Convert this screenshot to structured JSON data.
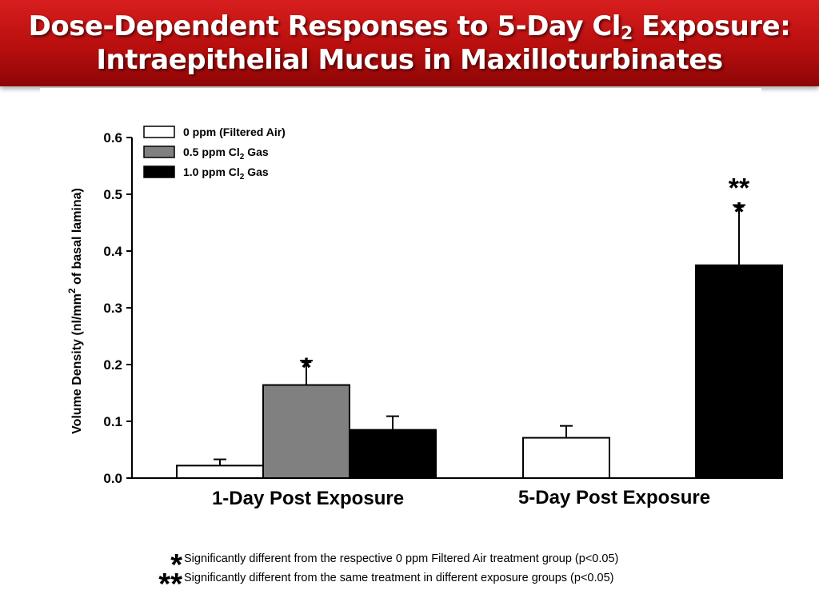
{
  "title": {
    "line1_prefix": "Dose-Dependent Responses to 5-Day Cl",
    "line1_sub": "2",
    "line1_suffix": " Exposure:",
    "line2": "Intraepithelial Mucus in Maxilloturbinates"
  },
  "chart_data": {
    "type": "bar",
    "ylabel": "Volume Density (nl/mm² of basal lamina)",
    "ylim": [
      0,
      0.6
    ],
    "yticks": [
      "0.0",
      "0.1",
      "0.2",
      "0.3",
      "0.4",
      "0.5",
      "0.6"
    ],
    "categories": [
      "1-Day Post Exposure",
      "5-Day Post Exposure"
    ],
    "series": [
      {
        "name": "0 ppm (Filtered Air)",
        "color": "#ffffff",
        "values": [
          0.022,
          0.071
        ],
        "errors": [
          0.011,
          0.021
        ]
      },
      {
        "name": "0.5 ppm Cl₂ Gas",
        "color": "#808080",
        "values": [
          0.164,
          null
        ],
        "errors": [
          0.043,
          null
        ]
      },
      {
        "name": "1.0 ppm Cl₂ Gas",
        "color": "#000000",
        "values": [
          0.085,
          0.375
        ],
        "errors": [
          0.024,
          0.106
        ]
      }
    ],
    "legend_position": "top-left",
    "grid": false,
    "significance_marks": [
      {
        "series": 1,
        "category": 0,
        "label": "*"
      },
      {
        "series": 2,
        "category": 1,
        "label": "**"
      },
      {
        "series": 2,
        "category": 1,
        "label": "*"
      }
    ]
  },
  "legend": [
    {
      "prefix": "0 ppm (Filtered Air)",
      "sub": "",
      "suffix": ""
    },
    {
      "prefix": "0.5 ppm Cl",
      "sub": "2",
      "suffix": " Gas"
    },
    {
      "prefix": "1.0 ppm Cl",
      "sub": "2",
      "suffix": " Gas"
    }
  ],
  "ylabel_parts": {
    "before": "Volume Density (nl/mm",
    "sup": "2",
    "after": " of basal lamina)"
  },
  "footnotes": [
    {
      "mark": "*",
      "text": "Significantly different from the respective 0 ppm Filtered Air treatment group (p<0.05)"
    },
    {
      "mark": "**",
      "text": "Significantly different from the same treatment in different exposure groups (p<0.05)"
    }
  ]
}
